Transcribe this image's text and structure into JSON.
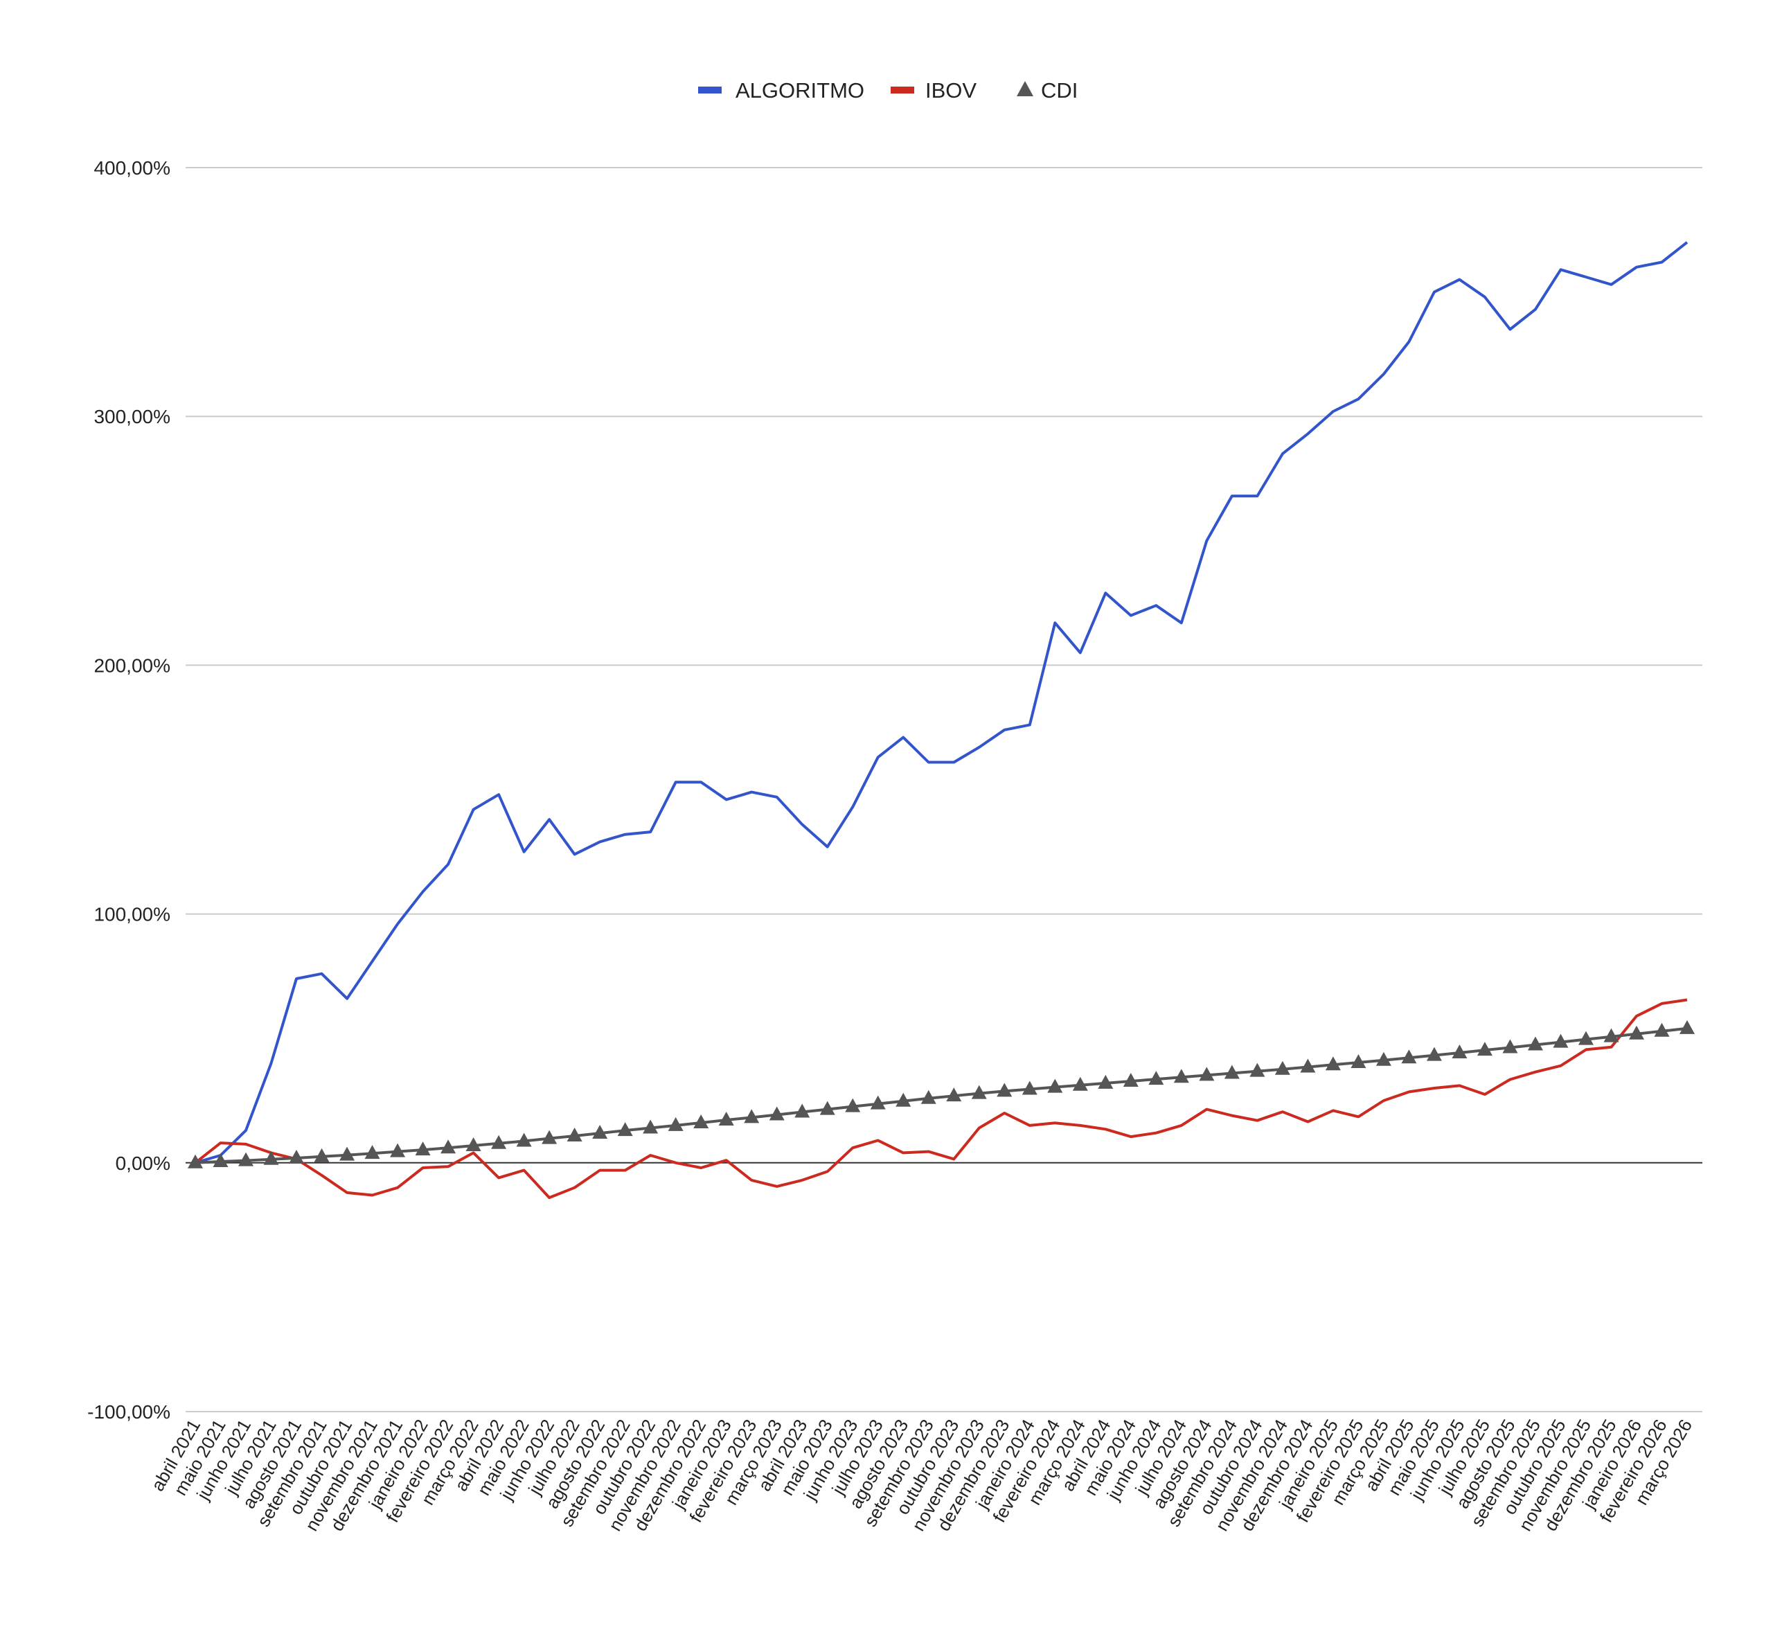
{
  "chart_data": {
    "type": "line",
    "legend_position": "top-center",
    "grid": true,
    "ylim": [
      -100,
      400
    ],
    "yticks": [
      -100,
      0,
      100,
      200,
      300,
      400
    ],
    "ytick_labels": [
      "-100,00%",
      "0,00%",
      "100,00%",
      "200,00%",
      "300,00%",
      "400,00%"
    ],
    "categories": [
      "abril 2021",
      "maio 2021",
      "junho 2021",
      "julho 2021",
      "agosto 2021",
      "setembro 2021",
      "outubro 2021",
      "novembro 2021",
      "dezembro 2021",
      "janeiro 2022",
      "fevereiro 2022",
      "março 2022",
      "abril 2022",
      "maio 2022",
      "junho 2022",
      "julho 2022",
      "agosto 2022",
      "setembro 2022",
      "outubro 2022",
      "novembro 2022",
      "dezembro 2022",
      "janeiro 2023",
      "fevereiro 2023",
      "março 2023",
      "abril 2023",
      "maio 2023",
      "junho 2023",
      "julho 2023",
      "agosto 2023",
      "setembro 2023",
      "outubro 2023",
      "novembro 2023",
      "dezembro 2023",
      "janeiro 2024",
      "fevereiro 2024",
      "março 2024",
      "abril 2024",
      "maio 2024",
      "junho 2024",
      "julho 2024",
      "agosto 2024",
      "setembro 2024",
      "outubro 2024",
      "novembro 2024",
      "dezembro 2024",
      "janeiro 2025",
      "fevereiro 2025",
      "março 2025",
      "abril 2025",
      "maio 2025",
      "junho 2025",
      "julho 2025",
      "agosto 2025",
      "setembro 2025",
      "outubro 2025",
      "novembro 2025",
      "dezembro 2025",
      "janeiro 2026",
      "fevereiro 2026",
      "março 2026"
    ],
    "x_point_offset": 0,
    "series": [
      {
        "name": "ALGORITMO",
        "color": "#3355cc",
        "marker": "none",
        "values": [
          0.0,
          3.0,
          13.0,
          40.0,
          74.0,
          76.0,
          66.0,
          81.0,
          96.0,
          109.0,
          120.0,
          142.0,
          148.0,
          125.0,
          138.0,
          124.0,
          129.0,
          132.0,
          133.0,
          153.0,
          153.0,
          146.0,
          149.0,
          147.0,
          136.0,
          127.0,
          143.0,
          163.0,
          171.0,
          161.0,
          161.0,
          167.0,
          174.0,
          176.0,
          217.0,
          205.0,
          229.0,
          220.0,
          224.0,
          217.0,
          250.0,
          268.0,
          268.0,
          285.0,
          293.0,
          302.0,
          307.0,
          317.0,
          330.0,
          350.0,
          355.0,
          348.0,
          335.0,
          343.0,
          359.0,
          356.0,
          353.0,
          360.0,
          362.0,
          370.0
        ]
      },
      {
        "name": "IBOV",
        "color": "#cc2a1f",
        "marker": "none",
        "values": [
          0.0,
          8.0,
          7.5,
          4.0,
          1.5,
          -5.0,
          -12.0,
          -13.0,
          -10.0,
          -2.0,
          -1.5,
          4.0,
          -6.0,
          -3.0,
          -14.0,
          -10.0,
          -3.0,
          -3.0,
          3.0,
          0.0,
          -2.0,
          1.0,
          -7.0,
          -9.5,
          -7.0,
          -3.5,
          6.0,
          9.0,
          4.0,
          4.5,
          1.5,
          14.0,
          20.0,
          15.0,
          16.0,
          15.0,
          13.5,
          10.5,
          12.0,
          15.0,
          21.5,
          19.0,
          17.0,
          20.5,
          16.5,
          21.0,
          18.5,
          25.0,
          28.5,
          30.0,
          31.0,
          27.5,
          33.5,
          36.5,
          39.0,
          45.5,
          46.5,
          59.0,
          64.0,
          65.5
        ]
      },
      {
        "name": "CDI",
        "color": "#555555",
        "marker": "triangle",
        "values": [
          0.0,
          0.5,
          0.9,
          1.4,
          1.9,
          2.5,
          3.1,
          3.8,
          4.5,
          5.2,
          6.0,
          6.9,
          7.8,
          8.7,
          9.8,
          10.8,
          11.9,
          13.0,
          14.0,
          15.0,
          16.1,
          17.2,
          18.2,
          19.3,
          20.4,
          21.5,
          22.6,
          23.7,
          24.8,
          25.9,
          26.9,
          27.9,
          28.8,
          29.6,
          30.4,
          31.2,
          32.0,
          32.8,
          33.6,
          34.4,
          35.2,
          36.0,
          36.8,
          37.6,
          38.5,
          39.4,
          40.3,
          41.2,
          42.2,
          43.2,
          44.2,
          45.3,
          46.3,
          47.4,
          48.5,
          49.6,
          50.7,
          51.8,
          52.9,
          54.0
        ]
      }
    ]
  }
}
